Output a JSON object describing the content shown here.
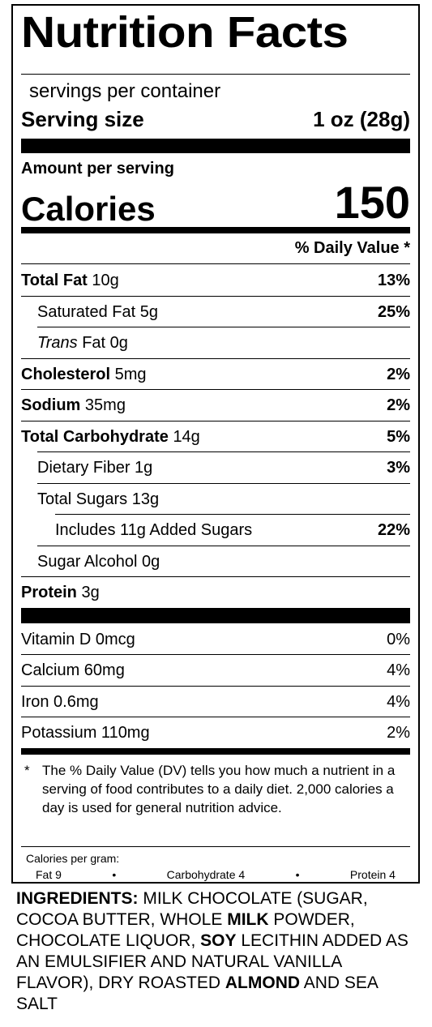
{
  "label": {
    "title": "Nutrition Facts",
    "servings_per_container": "servings per container",
    "serving_size_label": "Serving size",
    "serving_size_value": "1 oz (28g)",
    "amount_per_serving": "Amount per serving",
    "calories_label": "Calories",
    "calories_value": "150",
    "daily_value_header": "% Daily Value *",
    "nutrients": [
      {
        "name": "Total Fat",
        "amount": "10g",
        "dv": "13%"
      },
      {
        "name": "Saturated Fat",
        "amount": "5g",
        "dv": "25%"
      },
      {
        "name": "Trans",
        "amount": "Fat 0g",
        "dv": ""
      },
      {
        "name": "Cholesterol",
        "amount": "5mg",
        "dv": "2%"
      },
      {
        "name": "Sodium",
        "amount": "35mg",
        "dv": "2%"
      },
      {
        "name": "Total Carbohydrate",
        "amount": "14g",
        "dv": "5%"
      },
      {
        "name": "Dietary Fiber",
        "amount": "1g",
        "dv": "3%"
      },
      {
        "name": "Total Sugars",
        "amount": "13g",
        "dv": ""
      },
      {
        "name": "Includes 11g Added Sugars",
        "amount": "",
        "dv": "22%"
      },
      {
        "name": "Sugar Alcohol",
        "amount": "0g",
        "dv": ""
      },
      {
        "name": "Protein",
        "amount": "3g",
        "dv": ""
      }
    ],
    "vitamins": [
      {
        "name": "Vitamin D 0mcg",
        "dv": "0%"
      },
      {
        "name": "Calcium 60mg",
        "dv": "4%"
      },
      {
        "name": "Iron 0.6mg",
        "dv": "4%"
      },
      {
        "name": "Potassium 110mg",
        "dv": "2%"
      }
    ],
    "footnote_star": "*",
    "footnote": "The % Daily Value (DV) tells you how much a nutrient in a serving of food contributes to a daily diet. 2,000 calories a day is used for general nutrition advice.",
    "calories_per_gram_label": "Calories per gram:",
    "cpg_fat": "Fat 9",
    "cpg_carb": "Carbohydrate 4",
    "cpg_protein": "Protein 4",
    "cpg_bullet": "•"
  },
  "ingredients": {
    "heading": "INGREDIENTS:",
    "part1": " MILK CHOCOLATE (SUGAR, COCOA BUTTER, WHOLE ",
    "bold1": "MILK",
    "part2": " POWDER, CHOCOLATE LIQUOR, ",
    "bold2": "SOY",
    "part3": " LECITHIN ADDED AS AN EMULSIFIER AND NATURAL VANILLA FLAVOR), DRY ROASTED ",
    "bold3": "ALMOND",
    "part4": " AND SEA SALT"
  }
}
